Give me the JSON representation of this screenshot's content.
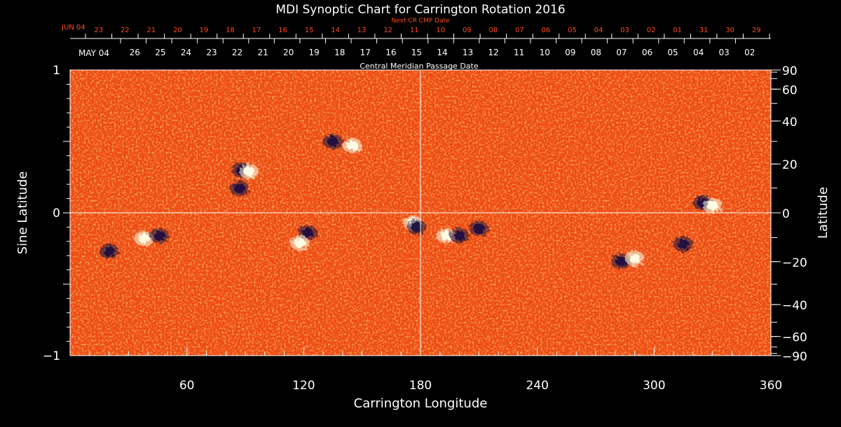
{
  "chart_data": {
    "type": "heatmap",
    "title": "MDI Synoptic Chart for Carrington Rotation 2016",
    "xlabel": "Carrington Longitude",
    "ylabel_left": "Sine Latitude",
    "ylabel_right": "Latitude",
    "xlim": [
      0,
      360
    ],
    "ylim": [
      -1,
      1
    ],
    "x_ticks": [
      "60",
      "120",
      "180",
      "240",
      "300",
      "360"
    ],
    "x_tick_values": [
      60,
      120,
      180,
      240,
      300,
      360
    ],
    "y_ticks_left": [
      "1",
      "0",
      "−1"
    ],
    "y_tick_values_left": [
      1,
      0,
      -1
    ],
    "y_ticks_right": [
      "90",
      "60",
      "40",
      "20",
      "0",
      "−20",
      "−40",
      "−60",
      "−90"
    ],
    "y_tick_latitudes_right": [
      90,
      60,
      40,
      20,
      0,
      -20,
      -40,
      -60,
      -90
    ],
    "reference_lines": {
      "longitude": 180,
      "sine_latitude": 0
    },
    "next_cr_axis": {
      "label": "Next CR CMP Date",
      "month_label": "JUN 04",
      "dates": [
        "23",
        "22",
        "21",
        "20",
        "19",
        "18",
        "17",
        "16",
        "15",
        "14",
        "13",
        "12",
        "11",
        "10",
        "09",
        "08",
        "07",
        "06",
        "05",
        "04",
        "03",
        "02",
        "01",
        "31",
        "30",
        "29"
      ]
    },
    "cmp_axis": {
      "label": "Central Meridian Passage Date",
      "month_label": "MAY 04",
      "dates": [
        "26",
        "25",
        "24",
        "23",
        "22",
        "21",
        "20",
        "19",
        "18",
        "17",
        "16",
        "15",
        "14",
        "13",
        "12",
        "11",
        "10",
        "09",
        "08",
        "07",
        "06",
        "05",
        "04",
        "03",
        "02"
      ]
    },
    "active_regions": [
      {
        "lon": 38,
        "sinlat": -0.18,
        "polarity": "positive"
      },
      {
        "lon": 46,
        "sinlat": -0.16,
        "polarity": "negative"
      },
      {
        "lon": 20,
        "sinlat": -0.27,
        "polarity": "negative"
      },
      {
        "lon": 88,
        "sinlat": 0.3,
        "polarity": "negative"
      },
      {
        "lon": 92,
        "sinlat": 0.29,
        "polarity": "positive"
      },
      {
        "lon": 87,
        "sinlat": 0.17,
        "polarity": "negative"
      },
      {
        "lon": 122,
        "sinlat": -0.14,
        "polarity": "negative"
      },
      {
        "lon": 118,
        "sinlat": -0.21,
        "polarity": "positive"
      },
      {
        "lon": 135,
        "sinlat": 0.5,
        "polarity": "negative"
      },
      {
        "lon": 145,
        "sinlat": 0.47,
        "polarity": "positive"
      },
      {
        "lon": 176,
        "sinlat": -0.07,
        "polarity": "positive"
      },
      {
        "lon": 178,
        "sinlat": -0.1,
        "polarity": "negative"
      },
      {
        "lon": 193,
        "sinlat": -0.16,
        "polarity": "positive"
      },
      {
        "lon": 200,
        "sinlat": -0.16,
        "polarity": "negative"
      },
      {
        "lon": 210,
        "sinlat": -0.11,
        "polarity": "negative"
      },
      {
        "lon": 283,
        "sinlat": -0.34,
        "polarity": "negative"
      },
      {
        "lon": 290,
        "sinlat": -0.32,
        "polarity": "positive"
      },
      {
        "lon": 315,
        "sinlat": -0.22,
        "polarity": "negative"
      },
      {
        "lon": 325,
        "sinlat": 0.07,
        "polarity": "negative"
      },
      {
        "lon": 330,
        "sinlat": 0.05,
        "polarity": "positive"
      }
    ]
  },
  "colors": {
    "background": "#000000",
    "field_base": "#f04a10",
    "positive": "#ffffe8",
    "negative": "#1a1240",
    "upper_axis_text": "#ff4a1a",
    "axis_text": "#ffffff"
  }
}
